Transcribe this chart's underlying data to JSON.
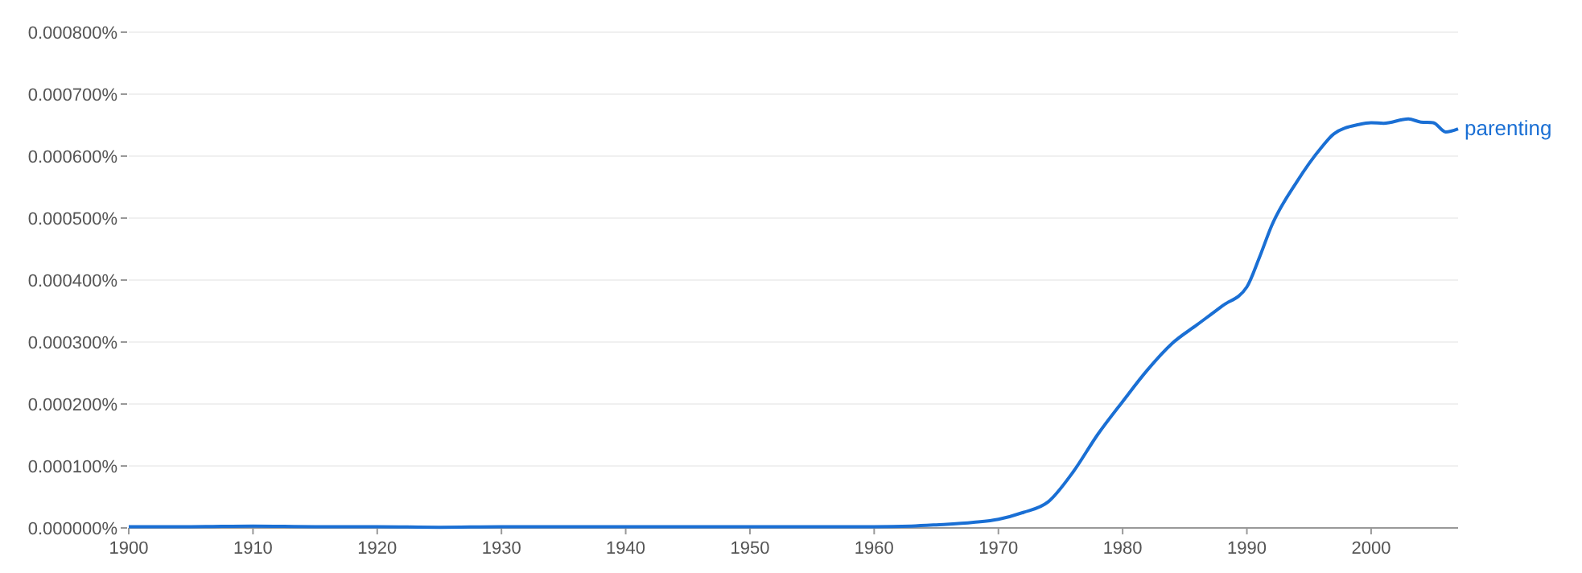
{
  "chart_data": {
    "type": "line",
    "x": [
      1900,
      1905,
      1910,
      1915,
      1920,
      1925,
      1930,
      1935,
      1940,
      1945,
      1950,
      1955,
      1960,
      1963,
      1965,
      1968,
      1970,
      1972,
      1974,
      1976,
      1978,
      1980,
      1982,
      1984,
      1986,
      1988,
      1990,
      1991,
      1992,
      1994,
      1996,
      1997,
      1999,
      2000,
      2001,
      2003,
      2004,
      2005,
      2006,
      2007
    ],
    "series": [
      {
        "name": "parenting",
        "color": "#1a6fd4",
        "values": [
          2e-06,
          2e-06,
          3e-06,
          2e-06,
          2e-06,
          1e-06,
          2e-06,
          2e-06,
          2e-06,
          2e-06,
          2e-06,
          2e-06,
          2e-06,
          3e-06,
          5e-06,
          9e-06,
          1.4e-05,
          2.5e-05,
          4.2e-05,
          9e-05,
          0.000151,
          0.000204,
          0.000255,
          0.000298,
          0.000328,
          0.000358,
          0.000389,
          0.000436,
          0.000488,
          0.000558,
          0.000614,
          0.000636,
          0.000651,
          0.000654,
          0.000653,
          0.00066,
          0.000655,
          0.000654,
          0.000639,
          0.000644
        ]
      }
    ],
    "xlim": [
      1900,
      2007
    ],
    "xticks": [
      1900,
      1910,
      1920,
      1930,
      1940,
      1950,
      1960,
      1970,
      1980,
      1990,
      2000
    ],
    "ylim": [
      0,
      0.0008
    ],
    "yticks": [
      {
        "value": 0,
        "label": "0.000000%"
      },
      {
        "value": 0.0001,
        "label": "0.000100%"
      },
      {
        "value": 0.0002,
        "label": "0.000200%"
      },
      {
        "value": 0.0003,
        "label": "0.000300%"
      },
      {
        "value": 0.0004,
        "label": "0.000400%"
      },
      {
        "value": 0.0005,
        "label": "0.000500%"
      },
      {
        "value": 0.0006,
        "label": "0.000600%"
      },
      {
        "value": 0.0007,
        "label": "0.000700%"
      },
      {
        "value": 0.0008,
        "label": "0.000800%"
      }
    ],
    "grid": "y",
    "line_style": "solid"
  }
}
